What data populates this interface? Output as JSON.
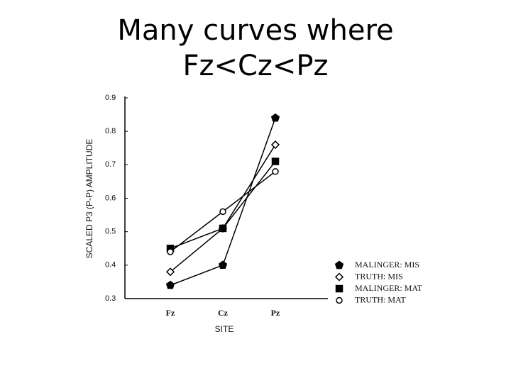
{
  "slide": {
    "title": [
      "Many curves where",
      "Fz<Cz<Pz"
    ]
  },
  "chart_data": {
    "type": "line",
    "x_label": "SITE",
    "y_label": "SCALED P3 (P-P) AMPLITUDE",
    "categories": [
      "Fz",
      "Cz",
      "Pz"
    ],
    "series": [
      {
        "name": "MALINGER: MIS",
        "color": "#000000",
        "marker": "pentagon",
        "filled": true,
        "values": [
          0.34,
          0.4,
          0.84
        ]
      },
      {
        "name": "TRUTH: MIS",
        "color": "#000000",
        "marker": "diamond",
        "filled": false,
        "values": [
          0.38,
          0.51,
          0.76
        ]
      },
      {
        "name": "MALINGER: MAT",
        "color": "#000000",
        "marker": "square",
        "filled": true,
        "values": [
          0.45,
          0.51,
          0.71
        ]
      },
      {
        "name": "TRUTH: MAT",
        "color": "#000000",
        "marker": "circle",
        "filled": false,
        "values": [
          0.44,
          0.56,
          0.68
        ]
      }
    ],
    "ylim": [
      0.3,
      0.9
    ],
    "yticks": [
      0.3,
      0.4,
      0.5,
      0.6,
      0.7,
      0.8,
      0.9
    ],
    "legend": "lower right"
  }
}
